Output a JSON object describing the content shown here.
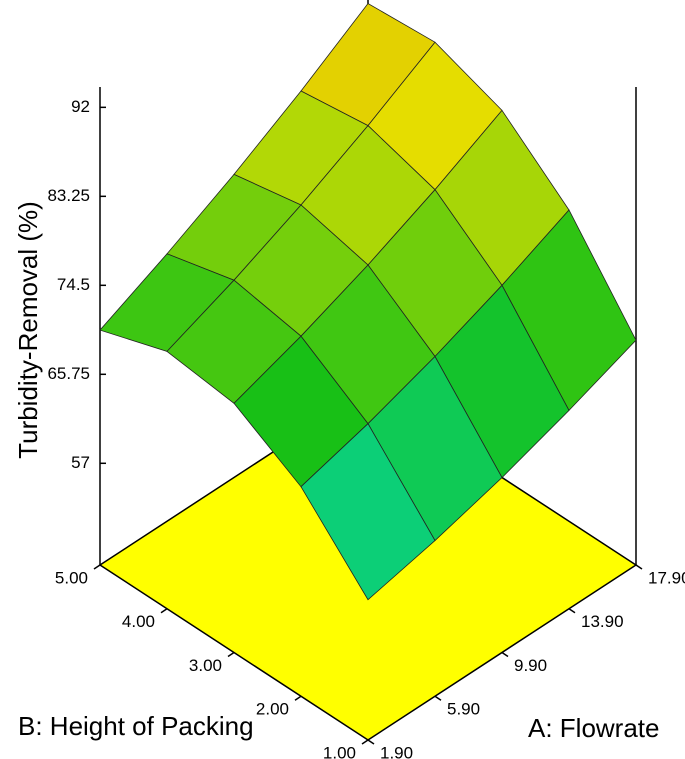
{
  "chart_data": {
    "type": "surface",
    "zlabel": "Turbidity-Removal  (%)",
    "xlabel": "A: Flowrate",
    "ylabel": "B: Height of Packing",
    "x": [
      1.9,
      5.9,
      9.9,
      13.9,
      17.9
    ],
    "y": [
      1,
      2,
      3,
      4,
      5
    ],
    "z": [
      [
        60.8,
        67.6,
        71.5,
        72.3,
        70.1
      ],
      [
        62.3,
        69.5,
        73.8,
        75.0,
        73.3
      ],
      [
        64.2,
        71.8,
        76.5,
        78.1,
        76.8
      ],
      [
        66.5,
        74.5,
        79.6,
        81.6,
        80.7
      ],
      [
        69.1,
        77.6,
        83.1,
        85.5,
        85.0
      ]
    ],
    "xlim": [
      1.9,
      17.9
    ],
    "ylim": [
      1,
      5
    ],
    "zlim": [
      47,
      94
    ],
    "xticks": [
      {
        "value": 1.9,
        "label": "1.90"
      },
      {
        "value": 5.9,
        "label": "5.90"
      },
      {
        "value": 9.9,
        "label": "9.90"
      },
      {
        "value": 13.9,
        "label": "13.90"
      },
      {
        "value": 17.9,
        "label": "17.90"
      }
    ],
    "yticks": [
      {
        "value": 1,
        "label": "1.00"
      },
      {
        "value": 2,
        "label": "2.00"
      },
      {
        "value": 3,
        "label": "3.00"
      },
      {
        "value": 4,
        "label": "4.00"
      },
      {
        "value": 5,
        "label": "5.00"
      }
    ],
    "zticks": [
      57,
      65.75,
      74.5,
      83.25,
      92
    ],
    "colormap": [
      "#1e5cff",
      "#00e0e8",
      "#16c016",
      "#e6e000",
      "#c02a08"
    ],
    "floor_color": "#ffff00"
  }
}
